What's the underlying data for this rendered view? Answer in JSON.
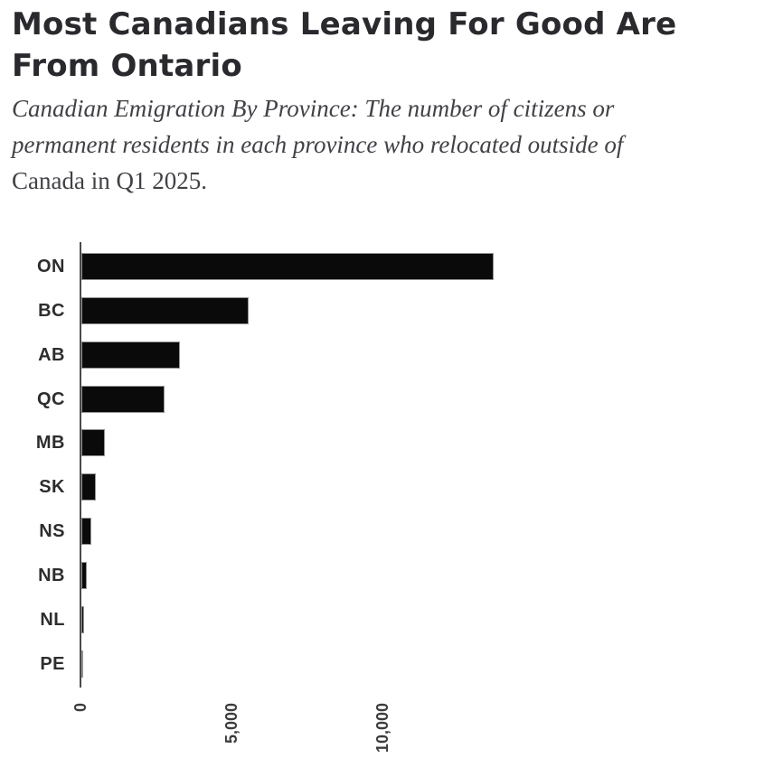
{
  "header": {
    "title": "Most Canadians Leaving For Good Are From Ontario",
    "title_lines": [
      "Most Canadians Leaving For Good Are",
      "From Ontario"
    ],
    "subtitle": "Canadian Emigration By Province: The number of citizens or permanent residents in each province who relocated outside of Canada in Q1 2025.",
    "subtitle_lines": [
      {
        "text": "Canadian Emigration By Province: The number of citizens or",
        "italic": true
      },
      {
        "text": "permanent residents in each province who relocated outside of",
        "italic": true
      },
      {
        "text": "Canada in Q1 2025.",
        "italic": false
      }
    ]
  },
  "chart_data": {
    "type": "bar",
    "orientation": "horizontal",
    "title": "Most Canadians Leaving For Good Are From Ontario",
    "subtitle": "Canadian Emigration By Province: The number of citizens or permanent residents in each province who relocated outside of Canada in Q1 2025.",
    "categories": [
      "ON",
      "BC",
      "AB",
      "QC",
      "MB",
      "SK",
      "NS",
      "NB",
      "NL",
      "PE"
    ],
    "values": [
      13660,
      5540,
      3270,
      2755,
      780,
      480,
      330,
      200,
      97,
      66
    ],
    "xlabel": "",
    "ylabel": "",
    "xlim": [
      0,
      14000
    ],
    "x_ticks": [
      {
        "value": 0,
        "label": "0"
      },
      {
        "value": 5000,
        "label": "5,000"
      },
      {
        "value": 10000,
        "label": "10,000"
      }
    ],
    "x_tick_rotation": 90,
    "grid": false,
    "legend": false,
    "sort_order": "descending"
  },
  "colors": {
    "background": "#ffffff",
    "title": "#2a2a2e",
    "subtitle": "#414146",
    "bar_fill": "#0a0a0a",
    "bar_edge": "#949494",
    "axis_line": "#4a4a4a",
    "category_label": "#2d2d2d",
    "tick_label": "#3c3c3c"
  }
}
